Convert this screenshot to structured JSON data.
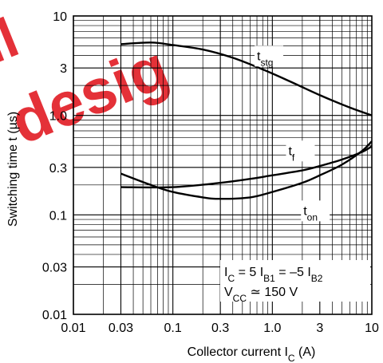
{
  "chart_data": {
    "type": "line",
    "title": "",
    "xlabel": {
      "main": "Collector current  I",
      "sub": "C",
      "unit": "  (A)"
    },
    "ylabel": "Switching time  t  (µs)",
    "xscale": "log",
    "yscale": "log",
    "xlim": [
      0.01,
      10
    ],
    "ylim": [
      0.01,
      10
    ],
    "grid": true,
    "x_ticks": [
      {
        "value": 0.01,
        "label": "0.01"
      },
      {
        "value": 0.03,
        "label": "0.03"
      },
      {
        "value": 0.1,
        "label": "0.1"
      },
      {
        "value": 0.3,
        "label": "0.3"
      },
      {
        "value": 1,
        "label": "1.0"
      },
      {
        "value": 3,
        "label": "3"
      },
      {
        "value": 10,
        "label": "10"
      }
    ],
    "y_ticks": [
      {
        "value": 0.01,
        "label": "0.01"
      },
      {
        "value": 0.03,
        "label": "0.03"
      },
      {
        "value": 0.1,
        "label": "0.1"
      },
      {
        "value": 0.3,
        "label": "0.3"
      },
      {
        "value": 1,
        "label": "1.0"
      },
      {
        "value": 3,
        "label": "3"
      },
      {
        "value": 10,
        "label": "10"
      }
    ],
    "series": [
      {
        "name": "t_stg",
        "label_main": "t",
        "label_sub": "stg",
        "x": [
          0.03,
          0.06,
          0.1,
          0.2,
          0.4,
          0.8,
          1.5,
          3,
          6,
          10
        ],
        "y": [
          5.2,
          5.4,
          5.1,
          4.6,
          3.8,
          2.9,
          2.2,
          1.6,
          1.2,
          1.0
        ]
      },
      {
        "name": "t_f",
        "label_main": "t",
        "label_sub": "f",
        "x": [
          0.03,
          0.1,
          0.3,
          0.6,
          1,
          2,
          3,
          5,
          8,
          10
        ],
        "y": [
          0.19,
          0.19,
          0.21,
          0.23,
          0.25,
          0.28,
          0.31,
          0.36,
          0.43,
          0.49
        ]
      },
      {
        "name": "t_on",
        "label_main": "t",
        "label_sub": "on",
        "x": [
          0.03,
          0.06,
          0.1,
          0.2,
          0.3,
          0.6,
          1,
          2,
          3,
          5,
          8,
          10
        ],
        "y": [
          0.26,
          0.2,
          0.17,
          0.15,
          0.145,
          0.15,
          0.17,
          0.21,
          0.25,
          0.32,
          0.44,
          0.55
        ]
      }
    ],
    "annotation": {
      "line1": {
        "i": "I",
        "c_sub": "C",
        "eq": " = 5 I",
        "b1_sub": "B1",
        "eq2": " = –5 I",
        "b2_sub": "B2"
      },
      "line2": {
        "v": "V",
        "cc_sub": "CC",
        "rest": " ≃ 150 V"
      }
    }
  }
}
